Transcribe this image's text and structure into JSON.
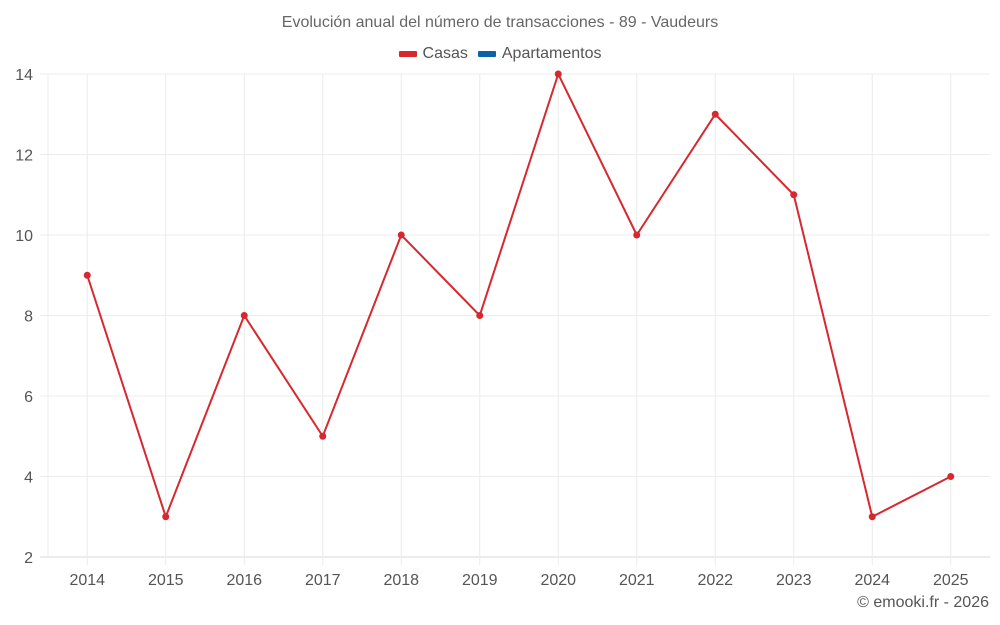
{
  "title": "Evolución anual del número de transacciones - 89 - Vaudeurs",
  "legend": [
    {
      "label": "Casas",
      "color": "#d7282f"
    },
    {
      "label": "Apartamentos",
      "color": "#0b62a4"
    }
  ],
  "credit": "© emooki.fr - 2026",
  "chart_data": {
    "type": "line",
    "title": "Evolución anual del número de transacciones - 89 - Vaudeurs",
    "xlabel": "",
    "ylabel": "",
    "categories": [
      "2014",
      "2015",
      "2016",
      "2017",
      "2018",
      "2019",
      "2020",
      "2021",
      "2022",
      "2023",
      "2024",
      "2025"
    ],
    "series": [
      {
        "name": "Casas",
        "color": "#d7282f",
        "values": [
          9,
          3,
          8,
          5,
          10,
          8,
          14,
          10,
          13,
          11,
          3,
          4
        ]
      },
      {
        "name": "Apartamentos",
        "color": "#0b62a4",
        "values": []
      }
    ],
    "ylim": [
      2,
      14
    ],
    "yticks": [
      2,
      4,
      6,
      8,
      10,
      12,
      14
    ],
    "grid": true,
    "legend_position": "top"
  }
}
